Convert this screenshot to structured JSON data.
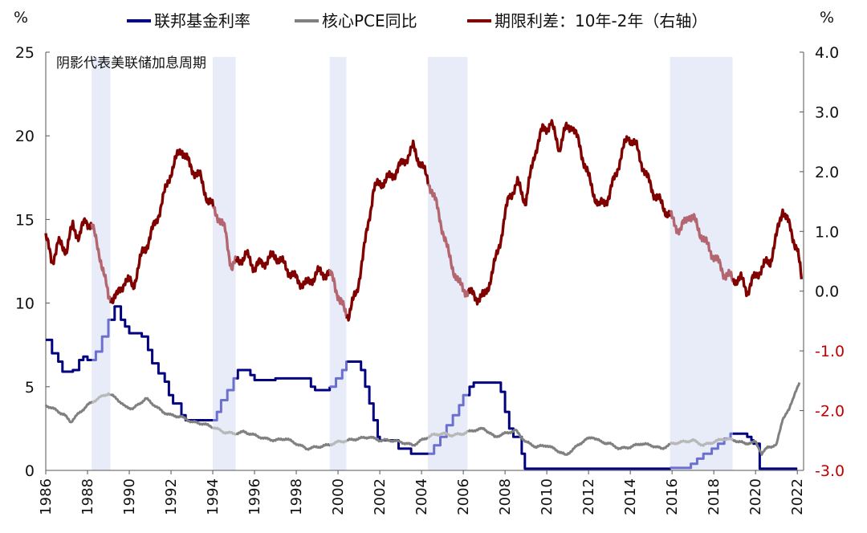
{
  "chart_data": {
    "type": "line",
    "left_unit": "%",
    "right_unit": "%",
    "annotation": "阴影代表美联储加息周期",
    "left_axis": {
      "range": [
        0,
        25
      ],
      "ticks": [
        "0",
        "5",
        "10",
        "15",
        "20",
        "25"
      ]
    },
    "right_axis": {
      "range": [
        -3.0,
        4.0
      ],
      "ticks": [
        "-3.0",
        "-2.0",
        "-1.0",
        "0.0",
        "1.0",
        "2.0",
        "3.0",
        "4.0"
      ]
    },
    "x_axis": {
      "range": [
        1986,
        2022.3
      ],
      "ticks": [
        "1986",
        "1988",
        "1990",
        "1992",
        "1994",
        "1996",
        "1998",
        "2000",
        "2002",
        "2004",
        "2006",
        "2008",
        "2010",
        "2012",
        "2014",
        "2016",
        "2018",
        "2020",
        "2022"
      ]
    },
    "hike_periods": [
      [
        1988.2,
        1989.1
      ],
      [
        1994.0,
        1995.1
      ],
      [
        1999.6,
        2000.4
      ],
      [
        2004.3,
        2006.2
      ],
      [
        2015.9,
        2018.9
      ]
    ],
    "series": [
      {
        "name": "联邦基金利率",
        "axis": "left",
        "color": "#000080",
        "shaded_color": "#6b6fcf",
        "step": true,
        "points": [
          [
            1986.0,
            7.8
          ],
          [
            1986.3,
            7.0
          ],
          [
            1986.6,
            6.5
          ],
          [
            1986.8,
            5.9
          ],
          [
            1987.3,
            6.0
          ],
          [
            1987.6,
            6.6
          ],
          [
            1987.8,
            6.8
          ],
          [
            1988.0,
            6.6
          ],
          [
            1988.4,
            7.1
          ],
          [
            1988.7,
            8.0
          ],
          [
            1989.0,
            9.0
          ],
          [
            1989.3,
            9.8
          ],
          [
            1989.6,
            9.0
          ],
          [
            1989.8,
            8.6
          ],
          [
            1990.0,
            8.2
          ],
          [
            1990.6,
            8.0
          ],
          [
            1990.9,
            7.2
          ],
          [
            1991.1,
            6.4
          ],
          [
            1991.4,
            5.8
          ],
          [
            1991.7,
            5.3
          ],
          [
            1991.9,
            4.5
          ],
          [
            1992.1,
            4.0
          ],
          [
            1992.5,
            3.3
          ],
          [
            1992.7,
            3.0
          ],
          [
            1994.0,
            3.0
          ],
          [
            1994.2,
            3.5
          ],
          [
            1994.4,
            4.2
          ],
          [
            1994.7,
            4.8
          ],
          [
            1995.0,
            5.5
          ],
          [
            1995.2,
            6.0
          ],
          [
            1995.5,
            6.0
          ],
          [
            1995.8,
            5.7
          ],
          [
            1996.0,
            5.4
          ],
          [
            1997.0,
            5.5
          ],
          [
            1998.7,
            5.0
          ],
          [
            1998.9,
            4.8
          ],
          [
            1999.6,
            5.0
          ],
          [
            1999.9,
            5.5
          ],
          [
            2000.2,
            6.0
          ],
          [
            2000.4,
            6.5
          ],
          [
            2000.9,
            6.5
          ],
          [
            2001.1,
            6.0
          ],
          [
            2001.3,
            5.0
          ],
          [
            2001.5,
            4.0
          ],
          [
            2001.7,
            3.0
          ],
          [
            2001.9,
            2.0
          ],
          [
            2002.0,
            1.8
          ],
          [
            2002.9,
            1.3
          ],
          [
            2003.5,
            1.0
          ],
          [
            2004.4,
            1.0
          ],
          [
            2004.6,
            1.5
          ],
          [
            2004.9,
            2.0
          ],
          [
            2005.2,
            2.7
          ],
          [
            2005.5,
            3.3
          ],
          [
            2005.8,
            3.9
          ],
          [
            2006.0,
            4.5
          ],
          [
            2006.3,
            5.0
          ],
          [
            2006.5,
            5.25
          ],
          [
            2007.6,
            5.25
          ],
          [
            2007.8,
            4.7
          ],
          [
            2008.0,
            3.5
          ],
          [
            2008.2,
            2.5
          ],
          [
            2008.4,
            2.0
          ],
          [
            2008.8,
            1.0
          ],
          [
            2008.95,
            0.1
          ],
          [
            2015.9,
            0.15
          ],
          [
            2016.9,
            0.4
          ],
          [
            2017.2,
            0.7
          ],
          [
            2017.5,
            1.0
          ],
          [
            2017.9,
            1.3
          ],
          [
            2018.2,
            1.6
          ],
          [
            2018.5,
            1.9
          ],
          [
            2018.8,
            2.2
          ],
          [
            2019.5,
            2.2
          ],
          [
            2019.6,
            2.0
          ],
          [
            2019.8,
            1.8
          ],
          [
            2019.9,
            1.6
          ],
          [
            2020.1,
            1.6
          ],
          [
            2020.2,
            0.1
          ],
          [
            2022.0,
            0.1
          ]
        ]
      },
      {
        "name": "核心PCE同比",
        "axis": "left",
        "color": "#808080",
        "shaded_color": "#b8b8b8",
        "step": false,
        "points": [
          [
            1986.0,
            3.9
          ],
          [
            1986.5,
            3.6
          ],
          [
            1986.9,
            3.3
          ],
          [
            1987.2,
            2.9
          ],
          [
            1987.5,
            3.3
          ],
          [
            1988.0,
            3.9
          ],
          [
            1988.5,
            4.3
          ],
          [
            1989.0,
            4.6
          ],
          [
            1989.4,
            4.3
          ],
          [
            1989.8,
            3.8
          ],
          [
            1990.2,
            3.7
          ],
          [
            1990.5,
            4.0
          ],
          [
            1990.8,
            4.3
          ],
          [
            1991.2,
            3.9
          ],
          [
            1991.6,
            3.5
          ],
          [
            1992.0,
            3.3
          ],
          [
            1992.5,
            3.2
          ],
          [
            1993.0,
            2.9
          ],
          [
            1993.5,
            2.8
          ],
          [
            1994.0,
            2.6
          ],
          [
            1994.5,
            2.3
          ],
          [
            1995.0,
            2.2
          ],
          [
            1995.5,
            2.3
          ],
          [
            1996.0,
            2.1
          ],
          [
            1996.5,
            1.9
          ],
          [
            1997.0,
            1.8
          ],
          [
            1997.5,
            1.9
          ],
          [
            1998.0,
            1.6
          ],
          [
            1998.5,
            1.3
          ],
          [
            1999.0,
            1.4
          ],
          [
            1999.5,
            1.5
          ],
          [
            2000.0,
            1.7
          ],
          [
            2000.5,
            1.8
          ],
          [
            2001.0,
            1.9
          ],
          [
            2001.5,
            2.0
          ],
          [
            2002.0,
            1.8
          ],
          [
            2002.5,
            1.8
          ],
          [
            2003.0,
            1.7
          ],
          [
            2003.6,
            1.5
          ],
          [
            2004.0,
            1.8
          ],
          [
            2004.5,
            2.1
          ],
          [
            2005.0,
            2.2
          ],
          [
            2005.5,
            2.1
          ],
          [
            2006.0,
            2.2
          ],
          [
            2006.5,
            2.4
          ],
          [
            2007.0,
            2.5
          ],
          [
            2007.5,
            2.0
          ],
          [
            2008.0,
            2.2
          ],
          [
            2008.5,
            2.4
          ],
          [
            2009.0,
            1.7
          ],
          [
            2009.5,
            1.4
          ],
          [
            2010.0,
            1.5
          ],
          [
            2010.5,
            1.2
          ],
          [
            2010.9,
            0.9
          ],
          [
            2011.3,
            1.3
          ],
          [
            2011.8,
            1.8
          ],
          [
            2012.2,
            2.0
          ],
          [
            2012.6,
            1.7
          ],
          [
            2013.0,
            1.6
          ],
          [
            2013.5,
            1.3
          ],
          [
            2014.0,
            1.4
          ],
          [
            2014.5,
            1.6
          ],
          [
            2015.0,
            1.5
          ],
          [
            2015.5,
            1.3
          ],
          [
            2016.0,
            1.6
          ],
          [
            2016.5,
            1.7
          ],
          [
            2017.0,
            1.8
          ],
          [
            2017.5,
            1.5
          ],
          [
            2018.0,
            1.7
          ],
          [
            2018.5,
            1.9
          ],
          [
            2019.0,
            1.8
          ],
          [
            2019.5,
            1.6
          ],
          [
            2020.0,
            1.7
          ],
          [
            2020.3,
            1.0
          ],
          [
            2020.6,
            1.4
          ],
          [
            2021.0,
            1.5
          ],
          [
            2021.3,
            3.1
          ],
          [
            2021.6,
            3.6
          ],
          [
            2021.9,
            4.7
          ],
          [
            2022.1,
            5.2
          ]
        ]
      },
      {
        "name": "期限利差：10年-2年（右轴）",
        "axis": "right",
        "color": "#800000",
        "shaded_color": "#b3666f",
        "step": false,
        "points": [
          [
            1986.0,
            0.9
          ],
          [
            1986.3,
            0.5
          ],
          [
            1986.6,
            0.8
          ],
          [
            1987.0,
            0.7
          ],
          [
            1987.3,
            1.1
          ],
          [
            1987.6,
            0.9
          ],
          [
            1987.9,
            1.2
          ],
          [
            1988.2,
            1.1
          ],
          [
            1988.6,
            0.6
          ],
          [
            1989.0,
            -0.1
          ],
          [
            1989.4,
            -0.1
          ],
          [
            1989.8,
            0.2
          ],
          [
            1990.2,
            0.1
          ],
          [
            1990.6,
            0.6
          ],
          [
            1991.0,
            0.9
          ],
          [
            1991.5,
            1.4
          ],
          [
            1992.0,
            2.0
          ],
          [
            1992.5,
            2.4
          ],
          [
            1992.9,
            2.1
          ],
          [
            1993.4,
            1.9
          ],
          [
            1993.8,
            1.5
          ],
          [
            1994.2,
            1.3
          ],
          [
            1994.6,
            1.0
          ],
          [
            1994.9,
            0.4
          ],
          [
            1995.2,
            0.5
          ],
          [
            1995.6,
            0.6
          ],
          [
            1996.0,
            0.4
          ],
          [
            1996.5,
            0.5
          ],
          [
            1997.0,
            0.6
          ],
          [
            1997.5,
            0.4
          ],
          [
            1998.0,
            0.2
          ],
          [
            1998.5,
            0.1
          ],
          [
            1999.0,
            0.3
          ],
          [
            1999.5,
            0.3
          ],
          [
            1999.8,
            0.2
          ],
          [
            2000.1,
            -0.2
          ],
          [
            2000.5,
            -0.4
          ],
          [
            2000.9,
            0.0
          ],
          [
            2001.3,
            0.8
          ],
          [
            2001.7,
            1.7
          ],
          [
            2002.0,
            1.8
          ],
          [
            2002.5,
            1.9
          ],
          [
            2003.0,
            2.1
          ],
          [
            2003.6,
            2.4
          ],
          [
            2004.0,
            2.1
          ],
          [
            2004.5,
            1.7
          ],
          [
            2004.9,
            1.2
          ],
          [
            2005.3,
            0.6
          ],
          [
            2005.8,
            0.1
          ],
          [
            2006.2,
            0.0
          ],
          [
            2006.6,
            -0.1
          ],
          [
            2007.0,
            -0.1
          ],
          [
            2007.4,
            0.3
          ],
          [
            2007.8,
            0.9
          ],
          [
            2008.2,
            1.6
          ],
          [
            2008.6,
            1.8
          ],
          [
            2009.0,
            1.5
          ],
          [
            2009.4,
            2.3
          ],
          [
            2009.8,
            2.7
          ],
          [
            2010.2,
            2.8
          ],
          [
            2010.6,
            2.4
          ],
          [
            2010.9,
            2.7
          ],
          [
            2011.2,
            2.8
          ],
          [
            2011.6,
            2.4
          ],
          [
            2012.0,
            1.9
          ],
          [
            2012.5,
            1.4
          ],
          [
            2013.0,
            1.6
          ],
          [
            2013.5,
            2.2
          ],
          [
            2013.9,
            2.6
          ],
          [
            2014.3,
            2.4
          ],
          [
            2014.8,
            1.9
          ],
          [
            2015.2,
            1.6
          ],
          [
            2015.6,
            1.4
          ],
          [
            2016.0,
            1.2
          ],
          [
            2016.4,
            1.0
          ],
          [
            2016.8,
            1.3
          ],
          [
            2017.2,
            1.1
          ],
          [
            2017.6,
            0.8
          ],
          [
            2018.0,
            0.6
          ],
          [
            2018.5,
            0.3
          ],
          [
            2018.9,
            0.2
          ],
          [
            2019.3,
            0.2
          ],
          [
            2019.6,
            0.0
          ],
          [
            2019.9,
            0.2
          ],
          [
            2020.3,
            0.4
          ],
          [
            2020.7,
            0.5
          ],
          [
            2021.0,
            0.9
          ],
          [
            2021.3,
            1.4
          ],
          [
            2021.6,
            1.1
          ],
          [
            2022.0,
            0.7
          ],
          [
            2022.2,
            0.2
          ]
        ]
      }
    ]
  }
}
